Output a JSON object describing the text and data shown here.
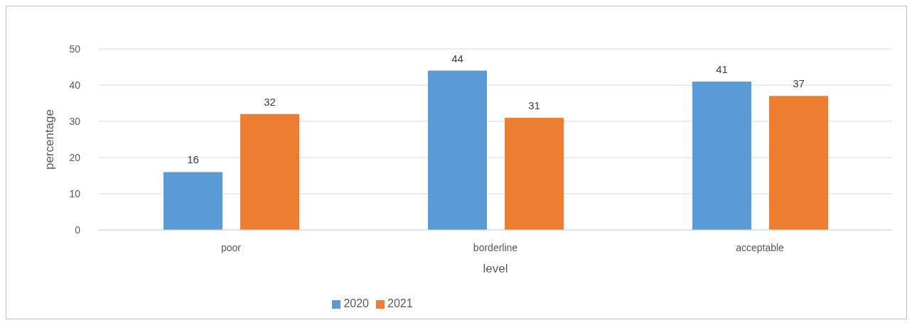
{
  "chart_data": {
    "type": "bar",
    "xlabel": "level",
    "ylabel": "percentage",
    "categories": [
      "poor",
      "borderline",
      "acceptable"
    ],
    "series": [
      {
        "name": "2020",
        "color": "#5b9bd5",
        "values": [
          16,
          44,
          41
        ]
      },
      {
        "name": "2021",
        "color": "#ed7d31",
        "values": [
          32,
          31,
          37
        ]
      }
    ],
    "ylim": [
      0,
      50
    ],
    "yticks": [
      0,
      10,
      20,
      30,
      40,
      50
    ],
    "grid": "y",
    "legend": "bottom",
    "data_labels": true
  }
}
